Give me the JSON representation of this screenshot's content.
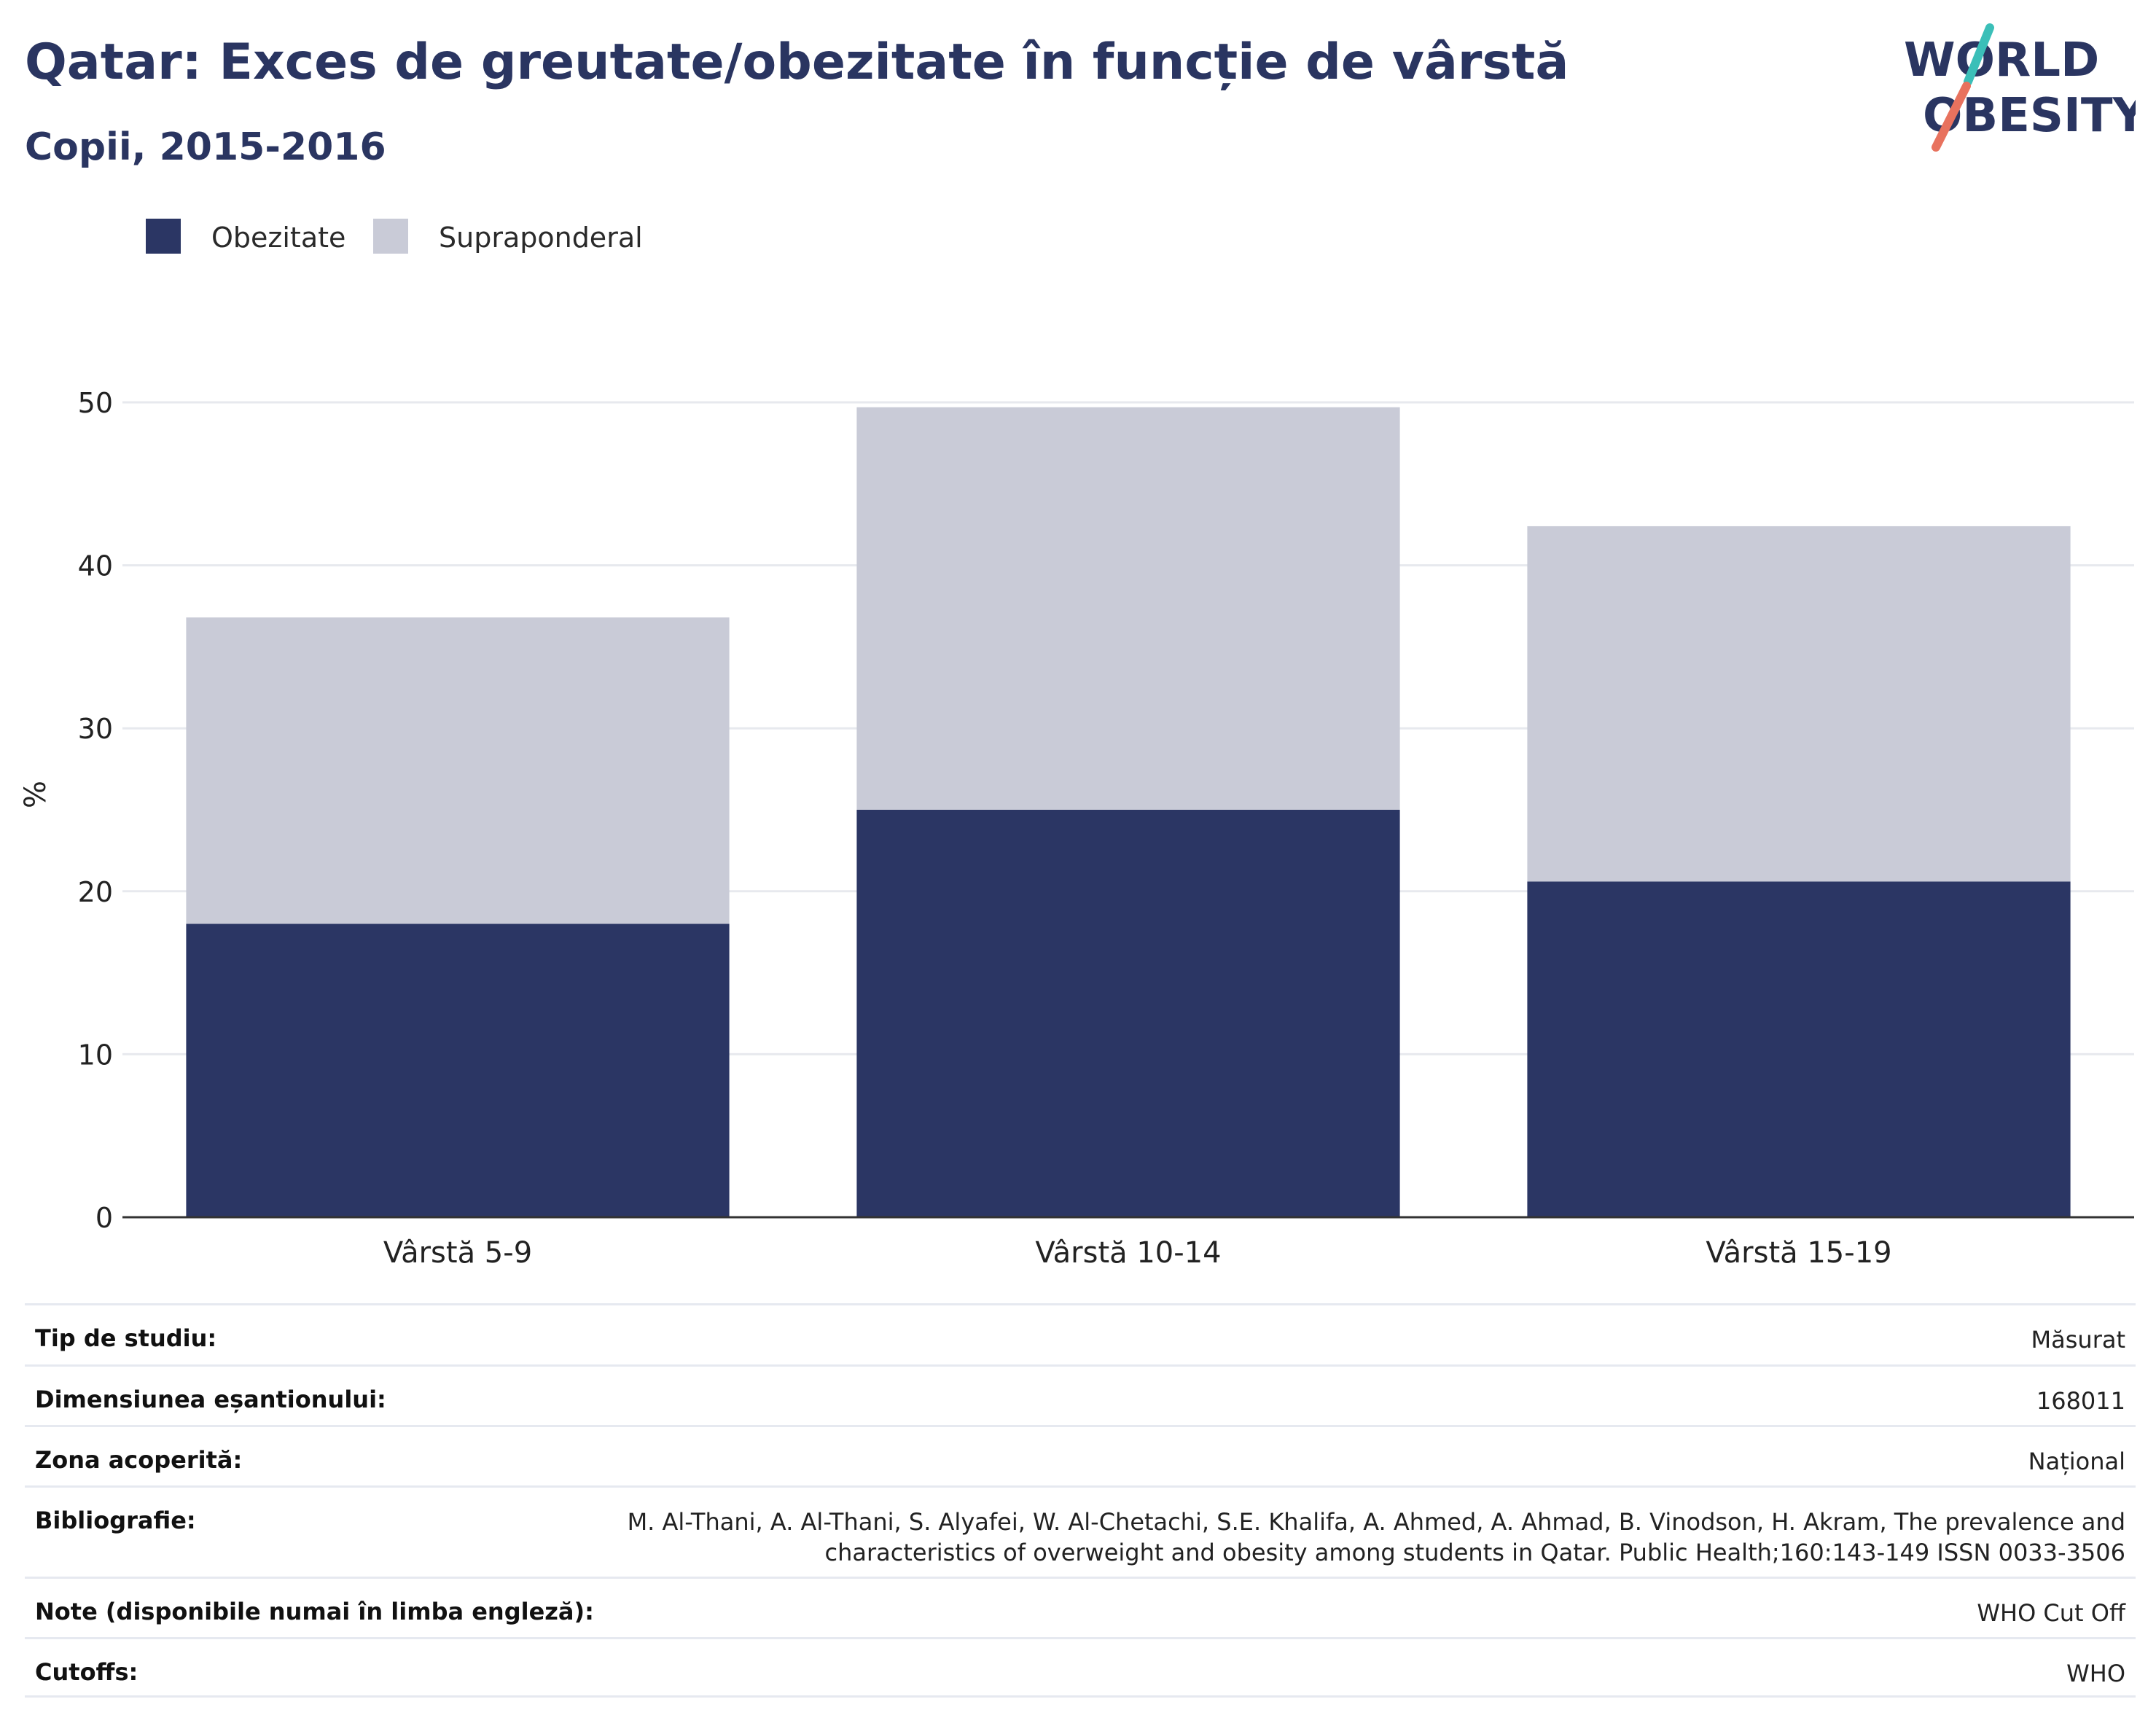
{
  "header": {
    "title": "Qatar: Exces de greutate/obezitate în funcție de vârstă",
    "subtitle": "Copii, 2015-2016"
  },
  "logo": {
    "line1": "WORLD",
    "line2": "OBESITY",
    "colors": {
      "text": "#2a3561",
      "slash_teal": "#3bbfb8",
      "slash_coral": "#e8725e"
    }
  },
  "legend": [
    {
      "label": "Obezitate",
      "color": "#2b3664"
    },
    {
      "label": "Supraponderal",
      "color": "#c9cbd7"
    }
  ],
  "chart_data": {
    "type": "bar",
    "stacked": true,
    "categories": [
      "Vârstă 5-9",
      "Vârstă 10-14",
      "Vârstă 15-19"
    ],
    "series": [
      {
        "name": "Obezitate",
        "color": "#2b3664",
        "values": [
          18.0,
          25.0,
          20.6
        ]
      },
      {
        "name": "Supraponderal",
        "color": "#c9cbd7",
        "values": [
          18.8,
          24.7,
          21.8
        ]
      }
    ],
    "ylabel": "%",
    "ylim": [
      0,
      50
    ],
    "yticks": [
      "0",
      "10",
      "20",
      "30",
      "40",
      "50"
    ],
    "grid": true,
    "legend_position": "top-left"
  },
  "info": [
    {
      "label": "Tip de studiu:",
      "value": "Măsurat"
    },
    {
      "label": "Dimensiunea eșantionului:",
      "value": "168011"
    },
    {
      "label": "Zona acoperită:",
      "value": "Național"
    },
    {
      "label": "Bibliografie:",
      "value_lines": [
        "M. Al-Thani, A. Al-Thani, S. Alyafei, W. Al-Chetachi, S.E. Khalifa, A. Ahmed, A. Ahmad, B. Vinodson, H. Akram, The prevalence and",
        "characteristics of overweight and obesity among students in Qatar. Public Health;160:143-149 ISSN 0033-3506"
      ]
    },
    {
      "label": "Note (disponibile numai în limba engleză):",
      "value": "WHO Cut Off"
    },
    {
      "label": "Cutoffs:",
      "value": "WHO"
    }
  ]
}
